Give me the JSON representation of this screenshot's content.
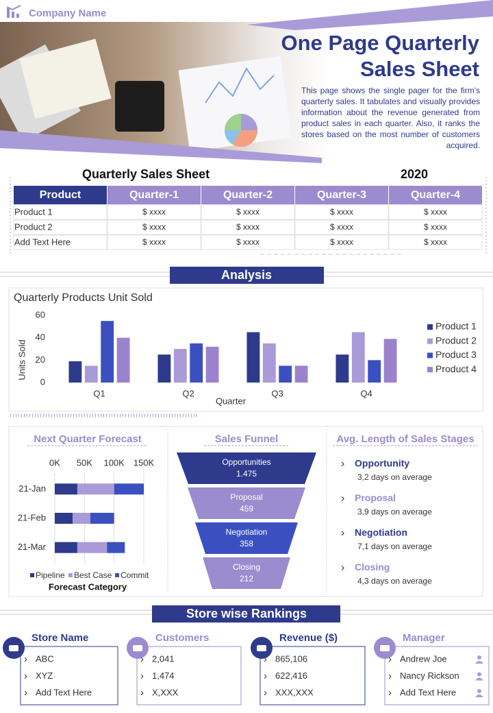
{
  "header": {
    "company": "Company Name",
    "title_lines": [
      "One Page Quarterly",
      "Sales Sheet"
    ],
    "description": "This page shows the single pager for the firm's quarterly sales. It tabulates and visually provides information about the revenue generated from product sales in each quarter. Also, it ranks the stores based on the most number of customers acquired."
  },
  "table": {
    "title": "Quarterly Sales Sheet",
    "year": "2020",
    "columns": [
      "Product",
      "Quarter-1",
      "Quarter-2",
      "Quarter-3",
      "Quarter-4"
    ],
    "rows": [
      [
        "Product 1",
        "$ xxxx",
        "$ xxxx",
        "$ xxxx",
        "$ xxxx"
      ],
      [
        "Product 2",
        "$ xxxx",
        "$ xxxx",
        "$ xxxx",
        "$ xxxx"
      ],
      [
        "Add Text Here",
        "$ xxxx",
        "$ xxxx",
        "$ xxxx",
        "$ xxxx"
      ]
    ]
  },
  "analysis": {
    "heading": "Analysis"
  },
  "chart_data": [
    {
      "type": "bar",
      "title": "Quarterly Products Unit Sold",
      "x_label": "Quarter",
      "y_label": "Units Sold",
      "categories": [
        "Q1",
        "Q2",
        "Q3",
        "Q4"
      ],
      "series": [
        {
          "name": "Product 1",
          "color": "#2e3a8c",
          "values": [
            19,
            25,
            45,
            25
          ]
        },
        {
          "name": "Product 2",
          "color": "#a99bd8",
          "values": [
            15,
            30,
            35,
            45
          ]
        },
        {
          "name": "Product 3",
          "color": "#3b50c0",
          "values": [
            55,
            35,
            15,
            20
          ]
        },
        {
          "name": "Product 4",
          "color": "#9b82cf",
          "values": [
            40,
            32,
            15,
            39
          ]
        }
      ],
      "ylim": [
        0,
        60
      ],
      "yticks": [
        0,
        20,
        40,
        60
      ],
      "grid": false,
      "legend": "right"
    },
    {
      "type": "bar",
      "orientation": "horizontal",
      "stacked": true,
      "title": "Next Quarter Forecast",
      "legend_title": "Forecast Category",
      "categories": [
        "21-Jan",
        "21-Feb",
        "21-Mar"
      ],
      "series": [
        {
          "name": "Pipeline",
          "color": "#2e3a8c",
          "values": [
            38000,
            30000,
            38000
          ]
        },
        {
          "name": "Best Case",
          "color": "#a99bd8",
          "values": [
            62000,
            30000,
            50000
          ]
        },
        {
          "name": "Commit",
          "color": "#3b50c0",
          "values": [
            50000,
            40000,
            30000
          ]
        }
      ],
      "xlim": [
        0,
        150000
      ],
      "xticks": [
        {
          "value": 0,
          "label": "0K"
        },
        {
          "value": 50000,
          "label": "50K"
        },
        {
          "value": 100000,
          "label": "100K"
        },
        {
          "value": 150000,
          "label": "150K"
        }
      ],
      "grid": true,
      "legend": "bottom"
    },
    {
      "type": "funnel",
      "title": "Sales Funnel",
      "categories": [
        "Opportunities",
        "Proposal",
        "Negotiation",
        "Closing"
      ],
      "values": [
        1475,
        459,
        358,
        212
      ],
      "value_labels": [
        "1.475",
        "459",
        "358",
        "212"
      ],
      "colors": [
        "#2e3a8c",
        "#9b8bcf",
        "#3b50c0",
        "#9b8bcf"
      ]
    }
  ],
  "sales_stages": {
    "title": "Avg. Length of Sales Stages",
    "items": [
      {
        "stage": "Opportunity",
        "detail": "3,2 days on average"
      },
      {
        "stage": "Proposal",
        "detail": "3,9 days on average"
      },
      {
        "stage": "Negotiation",
        "detail": "7,1 days on average"
      },
      {
        "stage": "Closing",
        "detail": "4,3 days on average"
      }
    ]
  },
  "rankings": {
    "heading": "Store wise Rankings",
    "columns": [
      {
        "title": "Store Name",
        "items": [
          "ABC",
          "XYZ",
          "Add Text Here"
        ]
      },
      {
        "title": "Customers",
        "items": [
          "2,041",
          "1,474",
          "X,XXX"
        ]
      },
      {
        "title": "Revenue ($)",
        "items": [
          "865,106",
          "622,416",
          "XXX,XXX"
        ]
      },
      {
        "title": "Manager",
        "items": [
          "Andrew Joe",
          "Nancy Rickson",
          "Add Text Here"
        ]
      }
    ]
  }
}
